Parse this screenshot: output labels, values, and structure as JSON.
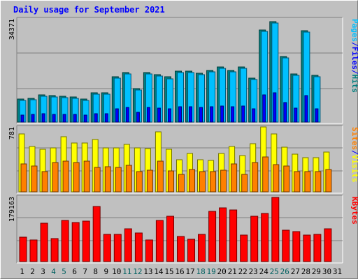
{
  "title": "Daily usage for September 2021",
  "chart_data": [
    {
      "type": "bar",
      "panel": "top",
      "ymax_label": "34371",
      "ylim": [
        0,
        34371
      ],
      "right_label": [
        "Pages",
        "/",
        "Files",
        "/",
        "Hits"
      ],
      "right_label_colors": [
        "#00c0ff",
        "#0000ff",
        "#0000ff",
        "#0000ff",
        "#008080"
      ],
      "categories": [
        "1",
        "2",
        "3",
        "4",
        "5",
        "6",
        "7",
        "8",
        "9",
        "10",
        "11",
        "12",
        "13",
        "14",
        "15",
        "16",
        "17",
        "18",
        "19",
        "20",
        "21",
        "22",
        "23",
        "24",
        "25",
        "26",
        "27",
        "28",
        "29",
        "30",
        "31"
      ],
      "series": [
        {
          "name": "Hits",
          "color": "#008080",
          "values": [
            7700,
            8000,
            9100,
            8800,
            8600,
            8300,
            7700,
            9700,
            9700,
            15100,
            16600,
            11100,
            16500,
            15800,
            15000,
            16900,
            17000,
            16200,
            17300,
            18400,
            17200,
            18300,
            14600,
            30600,
            33500,
            21800,
            16100,
            30400,
            15500,
            0,
            0
          ]
        },
        {
          "name": "Files",
          "color": "#00c0ff",
          "values": [
            7200,
            7500,
            8600,
            8300,
            8100,
            7800,
            7200,
            9200,
            9200,
            14600,
            16100,
            10600,
            16000,
            15300,
            14500,
            16400,
            16500,
            15700,
            16800,
            17900,
            16700,
            17800,
            14100,
            30100,
            33000,
            21300,
            15600,
            29900,
            15000,
            0,
            0
          ]
        },
        {
          "name": "Pages",
          "color": "#0000ff",
          "values": [
            2400,
            2500,
            2700,
            2600,
            2600,
            2500,
            2300,
            2900,
            2900,
            4400,
            4900,
            3300,
            4800,
            4600,
            4400,
            5000,
            5000,
            4800,
            5100,
            5400,
            5100,
            5400,
            4300,
            9000,
            9800,
            6400,
            4700,
            8900,
            4500,
            0,
            0
          ]
        }
      ]
    },
    {
      "type": "bar",
      "panel": "middle",
      "ymax_label": "781",
      "ylim": [
        0,
        781
      ],
      "right_label": [
        "Sites",
        "/",
        "Visits"
      ],
      "right_label_colors": [
        "#ff8000",
        "#0000ff",
        "#ffff00"
      ],
      "categories": [
        "1",
        "2",
        "3",
        "4",
        "5",
        "6",
        "7",
        "8",
        "9",
        "10",
        "11",
        "12",
        "13",
        "14",
        "15",
        "16",
        "17",
        "18",
        "19",
        "20",
        "21",
        "22",
        "23",
        "24",
        "25",
        "26",
        "27",
        "28",
        "29",
        "30",
        "31"
      ],
      "series": [
        {
          "name": "Visits",
          "color": "#ffff00",
          "values": [
            700,
            550,
            510,
            530,
            660,
            590,
            590,
            630,
            530,
            530,
            570,
            530,
            520,
            720,
            510,
            390,
            460,
            390,
            380,
            460,
            550,
            440,
            580,
            780,
            700,
            540,
            450,
            410,
            410,
            480,
            0
          ]
        },
        {
          "name": "Sites",
          "color": "#ff8000",
          "values": [
            340,
            310,
            240,
            350,
            370,
            350,
            370,
            290,
            300,
            290,
            320,
            240,
            260,
            370,
            250,
            210,
            270,
            240,
            240,
            260,
            340,
            210,
            350,
            420,
            330,
            310,
            240,
            240,
            240,
            270,
            0
          ]
        }
      ]
    },
    {
      "type": "bar",
      "panel": "bottom",
      "ymax_label": "179163",
      "ylim": [
        0,
        179163
      ],
      "right_label": [
        "KBytes"
      ],
      "right_label_colors": [
        "#ff0000"
      ],
      "categories": [
        "1",
        "2",
        "3",
        "4",
        "5",
        "6",
        "7",
        "8",
        "9",
        "10",
        "11",
        "12",
        "13",
        "14",
        "15",
        "16",
        "17",
        "18",
        "19",
        "20",
        "21",
        "22",
        "23",
        "24",
        "25",
        "26",
        "27",
        "28",
        "29",
        "30",
        "31"
      ],
      "series": [
        {
          "name": "KBytes",
          "color": "#ff0000",
          "values": [
            68000,
            59000,
            105000,
            63000,
            114000,
            108000,
            111000,
            153000,
            75000,
            75000,
            91000,
            79000,
            59000,
            114000,
            125000,
            69000,
            62000,
            75000,
            138000,
            148000,
            143000,
            73000,
            126000,
            133000,
            178000,
            87000,
            82000,
            73000,
            76000,
            91000,
            0
          ]
        }
      ]
    }
  ],
  "x_labels": [
    {
      "text": "1",
      "color": "#000000"
    },
    {
      "text": "2",
      "color": "#000000"
    },
    {
      "text": "3",
      "color": "#000000"
    },
    {
      "text": "4",
      "color": "#006060"
    },
    {
      "text": "5",
      "color": "#006060"
    },
    {
      "text": "6",
      "color": "#000000"
    },
    {
      "text": "7",
      "color": "#000000"
    },
    {
      "text": "8",
      "color": "#000000"
    },
    {
      "text": "9",
      "color": "#000000"
    },
    {
      "text": "10",
      "color": "#000000"
    },
    {
      "text": "11",
      "color": "#006060"
    },
    {
      "text": "12",
      "color": "#006060"
    },
    {
      "text": "13",
      "color": "#000000"
    },
    {
      "text": "14",
      "color": "#000000"
    },
    {
      "text": "15",
      "color": "#000000"
    },
    {
      "text": "16",
      "color": "#000000"
    },
    {
      "text": "17",
      "color": "#000000"
    },
    {
      "text": "18",
      "color": "#006060"
    },
    {
      "text": "19",
      "color": "#006060"
    },
    {
      "text": "20",
      "color": "#000000"
    },
    {
      "text": "21",
      "color": "#000000"
    },
    {
      "text": "22",
      "color": "#000000"
    },
    {
      "text": "23",
      "color": "#000000"
    },
    {
      "text": "24",
      "color": "#000000"
    },
    {
      "text": "25",
      "color": "#006060"
    },
    {
      "text": "26",
      "color": "#006060"
    },
    {
      "text": "27",
      "color": "#000000"
    },
    {
      "text": "28",
      "color": "#000000"
    },
    {
      "text": "29",
      "color": "#000000"
    },
    {
      "text": "30",
      "color": "#000000"
    },
    {
      "text": "31",
      "color": "#000000"
    }
  ]
}
